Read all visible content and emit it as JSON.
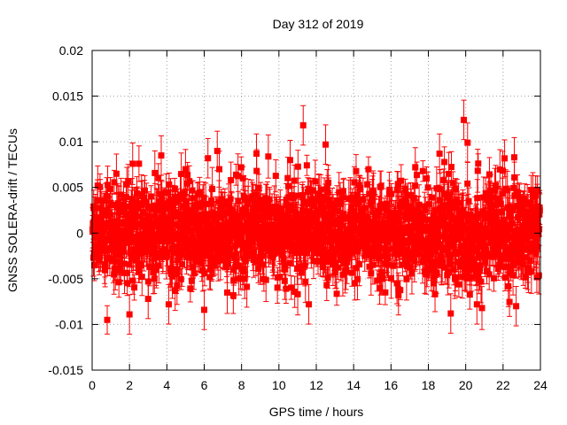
{
  "chart_data": {
    "type": "scatter",
    "title": "Day 312 of 2019",
    "xlabel": "GPS time / hours",
    "ylabel": "GNSS SOLERA-drift / TECUs",
    "xlim": [
      0,
      24
    ],
    "ylim": [
      -0.015,
      0.02
    ],
    "xticks": [
      0,
      2,
      4,
      6,
      8,
      10,
      12,
      14,
      16,
      18,
      20,
      22,
      24
    ],
    "yticks": [
      -0.015,
      -0.01,
      -0.005,
      0,
      0.005,
      0.01,
      0.015,
      0.02
    ],
    "xtick_labels": [
      "0",
      "2",
      "4",
      "6",
      "8",
      "10",
      "12",
      "14",
      "16",
      "18",
      "20",
      "22",
      "24"
    ],
    "ytick_labels": [
      "-0.015",
      "-0.01",
      "-0.005",
      "0",
      "0.005",
      "0.01",
      "0.015",
      "0.02"
    ],
    "grid": true,
    "series": [
      {
        "name": "SOLERA drift",
        "color": "#ff0000",
        "marker": "square",
        "error_bars": true,
        "x_step_hours": 0.0125,
        "noise_sigma": 0.0025,
        "typical_error": 0.0018,
        "notable_points": [
          {
            "x": 0.3,
            "y": 0.0052
          },
          {
            "x": 1.3,
            "y": 0.0065
          },
          {
            "x": 2.0,
            "y": -0.0089
          },
          {
            "x": 3.0,
            "y": -0.0072
          },
          {
            "x": 3.7,
            "y": 0.0085
          },
          {
            "x": 4.1,
            "y": -0.0078
          },
          {
            "x": 5.0,
            "y": 0.007
          },
          {
            "x": 6.0,
            "y": -0.0084
          },
          {
            "x": 6.2,
            "y": 0.0082
          },
          {
            "x": 6.7,
            "y": 0.009
          },
          {
            "x": 8.8,
            "y": 0.0087
          },
          {
            "x": 10.6,
            "y": 0.008
          },
          {
            "x": 11.3,
            "y": 0.0118
          },
          {
            "x": 11.6,
            "y": -0.0078
          },
          {
            "x": 12.5,
            "y": 0.0097
          },
          {
            "x": 16.4,
            "y": -0.0068
          },
          {
            "x": 17.3,
            "y": 0.0072
          },
          {
            "x": 18.6,
            "y": 0.0087
          },
          {
            "x": 19.2,
            "y": -0.0088
          },
          {
            "x": 19.9,
            "y": 0.0124
          },
          {
            "x": 20.1,
            "y": 0.0099
          },
          {
            "x": 20.6,
            "y": -0.0078
          },
          {
            "x": 22.6,
            "y": 0.0083
          },
          {
            "x": 22.7,
            "y": -0.008
          }
        ]
      }
    ]
  }
}
